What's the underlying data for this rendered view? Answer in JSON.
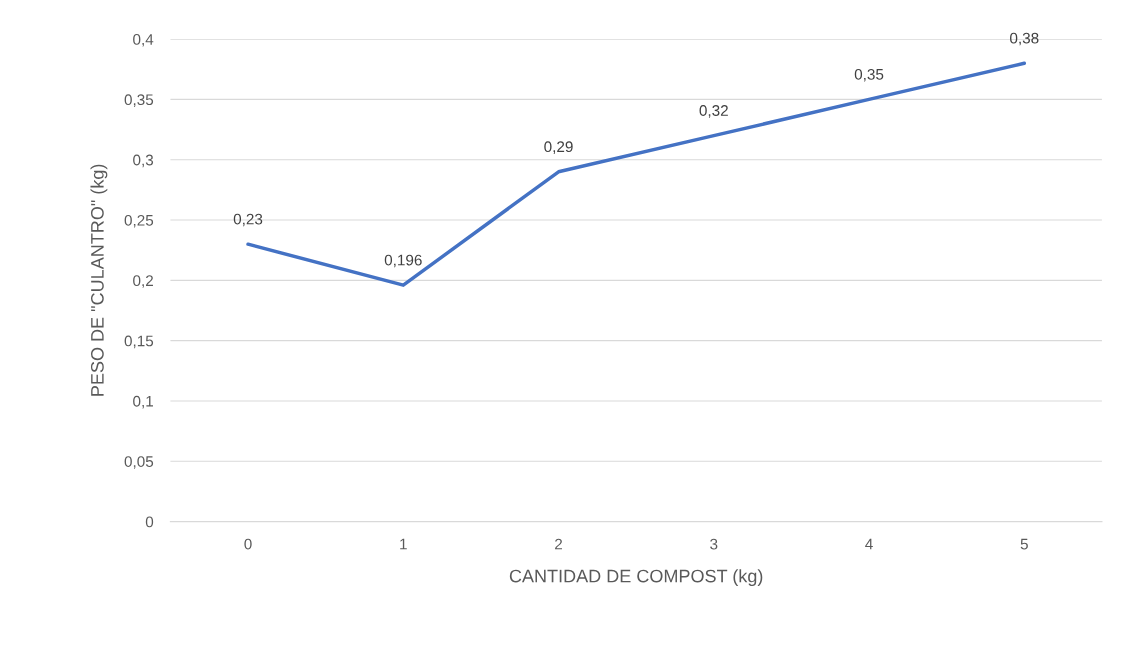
{
  "chart_data": {
    "type": "line",
    "xlabel": "CANTIDAD DE COMPOST (kg)",
    "ylabel": "PESO DE \"CULANTRO\" (kg)",
    "categories": [
      "0",
      "1",
      "2",
      "3",
      "4",
      "5"
    ],
    "series": [
      {
        "color": "#4472c4",
        "values": [
          0.23,
          0.196,
          0.29,
          0.32,
          0.35,
          0.38
        ],
        "value_labels": [
          "0,23",
          "0,196",
          "0,29",
          "0,32",
          "0,35",
          "0,38"
        ]
      }
    ],
    "ylim": [
      0,
      0.4
    ],
    "yticks": [
      {
        "value": 0,
        "label": "0"
      },
      {
        "value": 0.05,
        "label": "0,05"
      },
      {
        "value": 0.1,
        "label": "0,1"
      },
      {
        "value": 0.15,
        "label": "0,15"
      },
      {
        "value": 0.2,
        "label": "0,2"
      },
      {
        "value": 0.25,
        "label": "0,25"
      },
      {
        "value": 0.3,
        "label": "0,3"
      },
      {
        "value": 0.35,
        "label": "0,35"
      },
      {
        "value": 0.4,
        "label": "0,4"
      }
    ],
    "grid": "y",
    "legend": false,
    "marker": "none",
    "line_style": "solid"
  }
}
